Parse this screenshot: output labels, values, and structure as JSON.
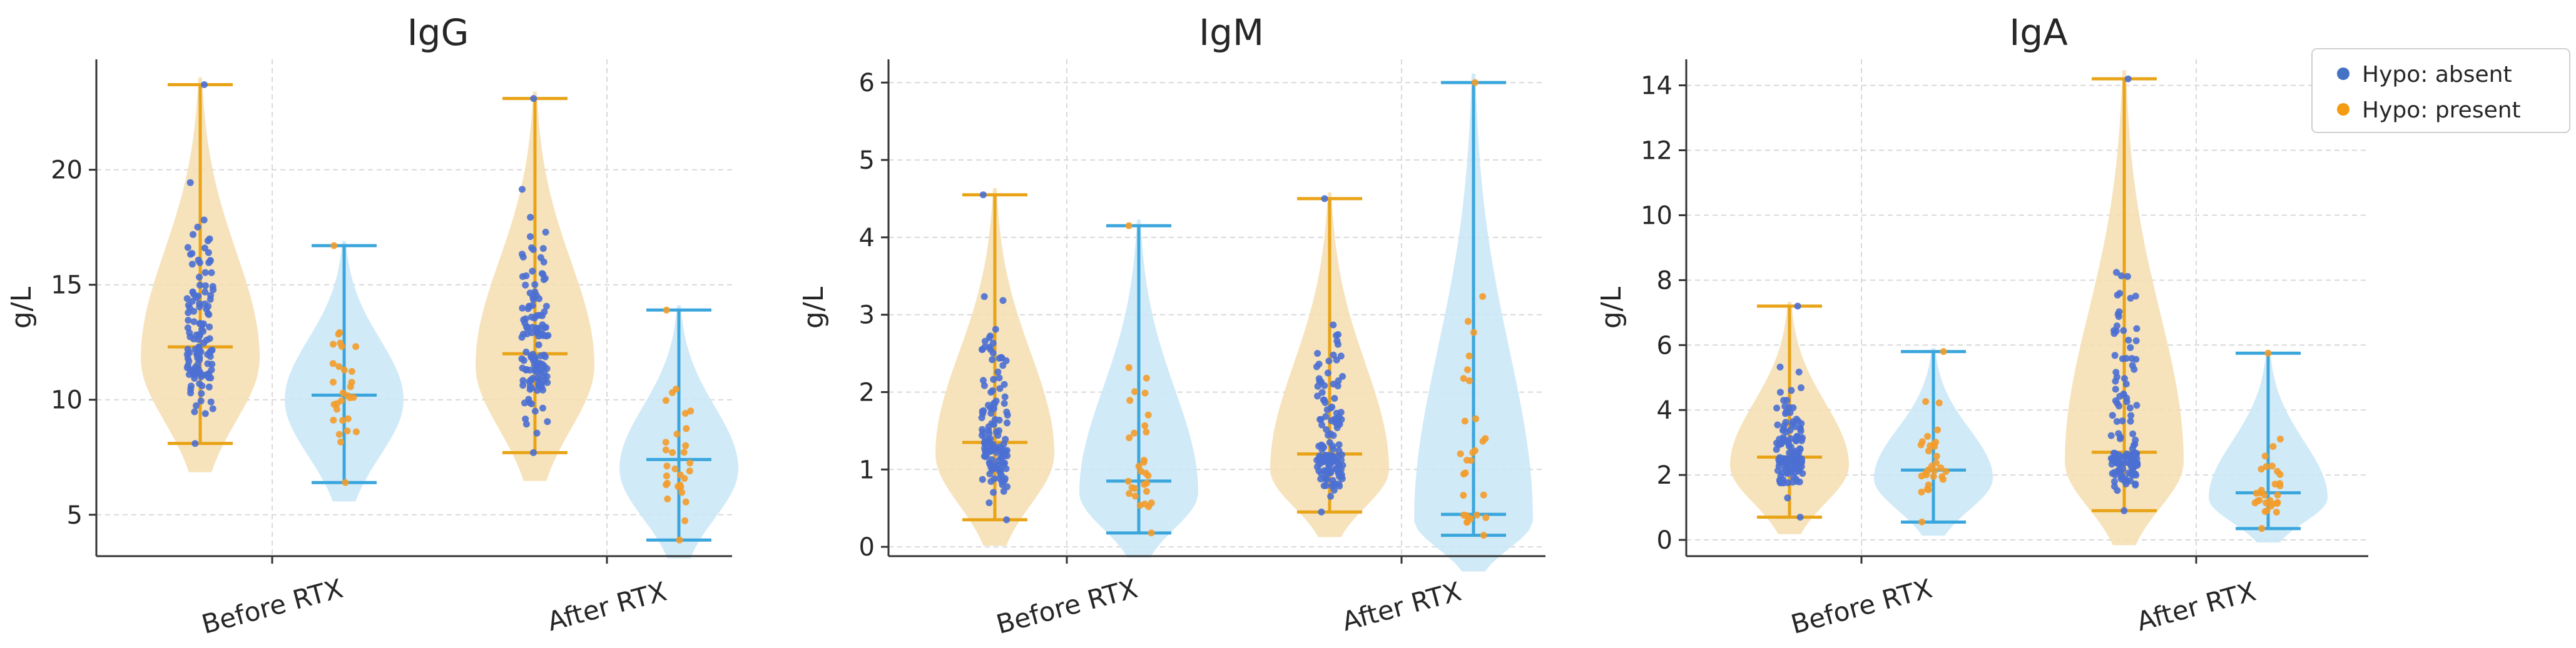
{
  "chart_data": [
    {
      "type": "violin",
      "title": "IgG",
      "ylabel": "g/L",
      "categories": [
        "Before RTX",
        "After RTX"
      ],
      "ylim": [
        3.2,
        24.8
      ],
      "yticks": [
        5,
        10,
        15,
        20
      ],
      "series": [
        {
          "name": "Hypo: absent",
          "violins": [
            {
              "min": 8.1,
              "median": 12.3,
              "max": 23.7,
              "mode": 11.8
            },
            {
              "min": 7.7,
              "median": 12.0,
              "max": 23.1,
              "mode": 11.5
            }
          ]
        },
        {
          "name": "Hypo: present",
          "violins": [
            {
              "min": 6.4,
              "median": 10.2,
              "max": 16.7,
              "mode": 10.0
            },
            {
              "min": 3.9,
              "median": 7.4,
              "max": 13.9,
              "mode": 7.0
            }
          ]
        }
      ]
    },
    {
      "type": "violin",
      "title": "IgM",
      "ylabel": "g/L",
      "categories": [
        "Before RTX",
        "After RTX"
      ],
      "ylim": [
        -0.12,
        6.3
      ],
      "yticks": [
        0,
        1,
        2,
        3,
        4,
        5,
        6
      ],
      "series": [
        {
          "name": "Hypo: absent",
          "violins": [
            {
              "min": 0.35,
              "median": 1.35,
              "max": 4.55,
              "mode": 1.2
            },
            {
              "min": 0.45,
              "median": 1.2,
              "max": 4.5,
              "mode": 1.0
            }
          ]
        },
        {
          "name": "Hypo: present",
          "violins": [
            {
              "min": 0.18,
              "median": 0.85,
              "max": 4.15,
              "mode": 0.7
            },
            {
              "min": 0.15,
              "median": 0.42,
              "max": 6.0,
              "mode": 0.35
            }
          ]
        }
      ]
    },
    {
      "type": "violin",
      "title": "IgA",
      "ylabel": "g/L",
      "categories": [
        "Before RTX",
        "After RTX"
      ],
      "ylim": [
        -0.5,
        14.8
      ],
      "yticks": [
        0,
        2,
        4,
        6,
        8,
        10,
        12,
        14
      ],
      "series": [
        {
          "name": "Hypo: absent",
          "violins": [
            {
              "min": 0.7,
              "median": 2.55,
              "max": 7.2,
              "mode": 2.3
            },
            {
              "min": 0.9,
              "median": 2.7,
              "max": 14.2,
              "mode": 2.4
            }
          ]
        },
        {
          "name": "Hypo: present",
          "violins": [
            {
              "min": 0.55,
              "median": 2.15,
              "max": 5.8,
              "mode": 1.9
            },
            {
              "min": 0.35,
              "median": 1.45,
              "max": 5.75,
              "mode": 1.3
            }
          ]
        }
      ]
    }
  ],
  "legend": {
    "position": "top-right",
    "items": [
      {
        "label": "Hypo: absent",
        "color": "#4472c4"
      },
      {
        "label": "Hypo: present",
        "color": "#f39c12"
      }
    ]
  },
  "colors": {
    "absent_fill": "#f5deb0",
    "absent_line": "#e8a317",
    "absent_dot": "#4b6fd1",
    "present_fill": "#c9e6f7",
    "present_line": "#3aa6dc",
    "present_dot": "#f39c2a"
  }
}
